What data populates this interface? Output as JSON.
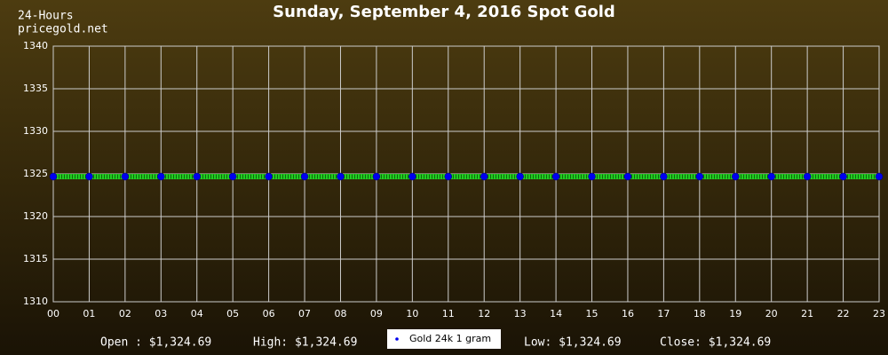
{
  "header": {
    "line1": "24-Hours",
    "line2": "pricegold.net"
  },
  "chart_data": {
    "type": "line",
    "title": "Sunday, September 4, 2016 Spot Gold",
    "categories": [
      "00",
      "01",
      "02",
      "03",
      "04",
      "05",
      "06",
      "07",
      "08",
      "09",
      "10",
      "11",
      "12",
      "13",
      "14",
      "15",
      "16",
      "17",
      "18",
      "19",
      "20",
      "21",
      "22",
      "23"
    ],
    "series": [
      {
        "name": "Gold 24k 1 gram",
        "color": "#22cc22",
        "marker_color": "#0000ee",
        "values": [
          1324.69,
          1324.69,
          1324.69,
          1324.69,
          1324.69,
          1324.69,
          1324.69,
          1324.69,
          1324.69,
          1324.69,
          1324.69,
          1324.69,
          1324.69,
          1324.69,
          1324.69,
          1324.69,
          1324.69,
          1324.69,
          1324.69,
          1324.69,
          1324.69,
          1324.69,
          1324.69,
          1324.69
        ]
      }
    ],
    "ylim": [
      1310,
      1340
    ],
    "yticks": [
      1310,
      1315,
      1320,
      1325,
      1330,
      1335,
      1340
    ],
    "grid": true
  },
  "stats": {
    "open": "Open : $1,324.69",
    "high": "High: $1,324.69",
    "low": "Low: $1,324.69",
    "close": "Close: $1,324.69"
  }
}
